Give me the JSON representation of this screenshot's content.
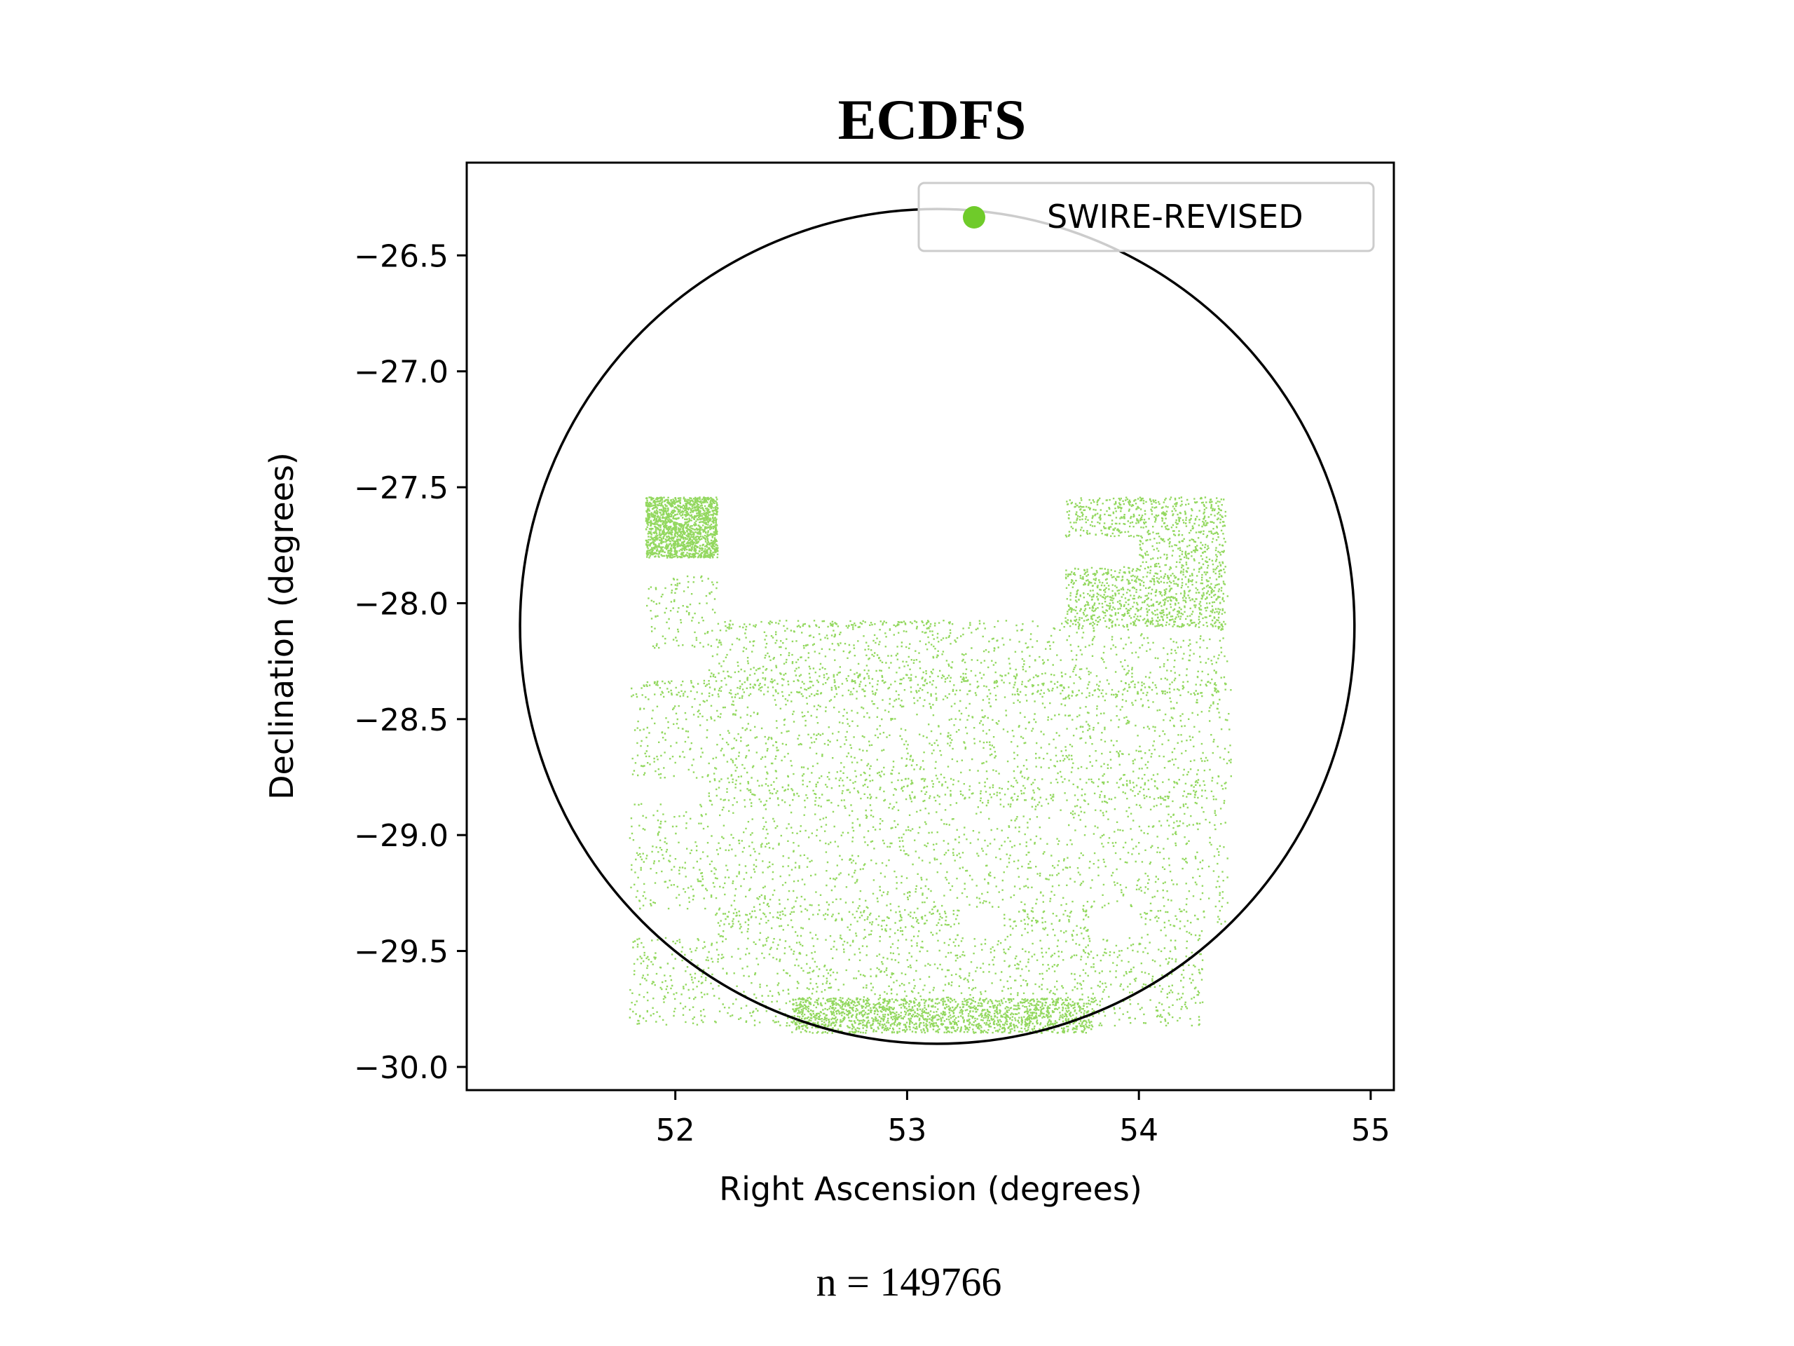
{
  "chart_data": {
    "type": "scatter",
    "title": "ECDFS",
    "xlabel": "Right Ascension (degrees)",
    "ylabel": "Declination (degrees)",
    "xlim": [
      51.1,
      55.1
    ],
    "ylim": [
      -30.1,
      -26.1
    ],
    "xticks": [
      52,
      53,
      54,
      55
    ],
    "xtick_labels": [
      "52",
      "53",
      "54",
      "55"
    ],
    "yticks": [
      -26.5,
      -27.0,
      -27.5,
      -28.0,
      -28.5,
      -29.0,
      -29.5,
      -30.0
    ],
    "ytick_labels": [
      "−26.5",
      "−27.0",
      "−27.5",
      "−28.0",
      "−28.5",
      "−29.0",
      "−29.5",
      "−30.0"
    ],
    "grid": false,
    "legend_position": "top-right",
    "series": [
      {
        "name": "SWIRE-REVISED",
        "color": "#6fcb2a",
        "marker": "point",
        "footprint_regions": [
          {
            "ra": [
              51.87,
              52.18
            ],
            "dec": [
              -27.8,
              -27.54
            ]
          },
          {
            "ra": [
              52.18,
              53.18
            ],
            "dec": [
              -28.1,
              -27.54
            ]
          },
          {
            "ra": [
              53.66,
              54.37
            ],
            "dec": [
              -28.1,
              -27.54
            ]
          },
          {
            "ra": [
              51.87,
              54.38
            ],
            "dec": [
              -28.4,
              -27.86
            ]
          },
          {
            "ra": [
              51.8,
              54.4
            ],
            "dec": [
              -28.85,
              -28.3
            ]
          },
          {
            "ra": [
              51.8,
              54.38
            ],
            "dec": [
              -29.4,
              -28.75
            ]
          },
          {
            "ra": [
              51.8,
              54.28
            ],
            "dec": [
              -29.82,
              -29.32
            ]
          },
          {
            "ra": [
              52.5,
              53.8
            ],
            "dec": [
              -29.85,
              -29.7
            ]
          }
        ],
        "gaps": [
          {
            "ra": [
              52.18,
              53.68
            ],
            "dec": [
              -28.07,
              -27.5
            ]
          },
          {
            "ra": [
              51.85,
              52.2
            ],
            "dec": [
              -27.88,
              -27.8
            ]
          },
          {
            "ra": [
              52.56,
              52.8
            ],
            "dec": [
              -27.85,
              -27.72
            ]
          },
          {
            "ra": [
              53.66,
              54.0
            ],
            "dec": [
              -27.84,
              -27.71
            ]
          },
          {
            "ra": [
              51.8,
              52.14
            ],
            "dec": [
              -28.33,
              -28.19
            ]
          },
          {
            "ra": [
              51.8,
              52.14
            ],
            "dec": [
              -28.86,
              -28.75
            ]
          },
          {
            "ra": [
              51.8,
              52.17
            ],
            "dec": [
              -29.44,
              -29.32
            ]
          },
          {
            "ra": [
              53.78,
              54.0
            ],
            "dec": [
              -29.44,
              -29.31
            ]
          },
          {
            "ra": [
              53.22,
              53.41
            ],
            "dec": [
              -29.44,
              -29.32
            ]
          },
          {
            "ra": [
              52.57,
              52.74
            ],
            "dec": [
              -29.4,
              -29.37
            ]
          }
        ]
      }
    ],
    "annotations": [
      {
        "type": "circle",
        "center_ra": 53.13,
        "center_dec": -28.1,
        "radius_deg": 1.8,
        "color": "#000000"
      }
    ],
    "sample_count_text": "n = 149766"
  }
}
